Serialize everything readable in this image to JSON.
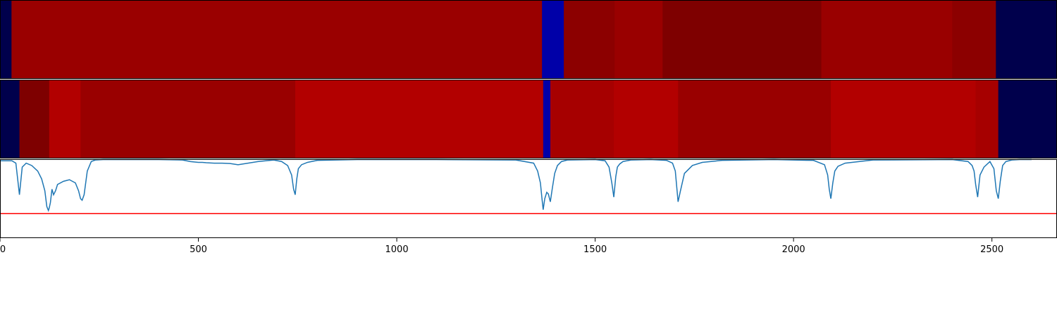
{
  "chart_data": {
    "type": "heatmap",
    "title": "",
    "xlabel": "",
    "ylabel": "",
    "xlim": [
      0,
      2664
    ],
    "x_ticks": [
      0,
      500,
      1000,
      1500,
      2000,
      2500
    ],
    "x_tick_labels": [
      "0",
      "500",
      "1000",
      "1500",
      "2000",
      "2500"
    ],
    "grid": false,
    "colormap": "seismic",
    "rows": [
      {
        "segments": [
          {
            "start": 0,
            "end": 29,
            "color": "#00004c"
          },
          {
            "start": 29,
            "end": 1366,
            "color": "#9a0000"
          },
          {
            "start": 1366,
            "end": 1421,
            "color": "#0000a8"
          },
          {
            "start": 1421,
            "end": 1549,
            "color": "#8c0000"
          },
          {
            "start": 1549,
            "end": 1670,
            "color": "#990000"
          },
          {
            "start": 1670,
            "end": 2070,
            "color": "#7e0000"
          },
          {
            "start": 2070,
            "end": 2400,
            "color": "#990000"
          },
          {
            "start": 2400,
            "end": 2510,
            "color": "#8c0000"
          },
          {
            "start": 2510,
            "end": 2664,
            "color": "#00004c"
          }
        ]
      },
      {
        "segments": [
          {
            "start": 0,
            "end": 49,
            "color": "#00004c"
          },
          {
            "start": 49,
            "end": 124,
            "color": "#7e0000"
          },
          {
            "start": 124,
            "end": 203,
            "color": "#b20000"
          },
          {
            "start": 203,
            "end": 744,
            "color": "#990000"
          },
          {
            "start": 744,
            "end": 1369,
            "color": "#b20000"
          },
          {
            "start": 1369,
            "end": 1387,
            "color": "#0000a8"
          },
          {
            "start": 1387,
            "end": 1547,
            "color": "#a60000"
          },
          {
            "start": 1547,
            "end": 1709,
            "color": "#b20000"
          },
          {
            "start": 1709,
            "end": 2094,
            "color": "#990000"
          },
          {
            "start": 2094,
            "end": 2459,
            "color": "#b20000"
          },
          {
            "start": 2459,
            "end": 2516,
            "color": "#a60000"
          },
          {
            "start": 2516,
            "end": 2664,
            "color": "#00004c"
          }
        ]
      }
    ],
    "line_series": {
      "color": "#1f77b4",
      "ylim": [
        0,
        1
      ],
      "x": [
        0,
        30,
        40,
        49,
        56,
        66,
        80,
        95,
        105,
        113,
        118,
        122,
        124,
        127,
        131,
        135,
        140,
        145,
        160,
        175,
        190,
        198,
        203,
        207,
        212,
        220,
        230,
        240,
        260,
        300,
        400,
        460,
        480,
        500,
        510,
        520,
        540,
        560,
        580,
        600,
        650,
        690,
        710,
        725,
        735,
        740,
        744,
        748,
        752,
        760,
        775,
        800,
        900,
        1100,
        1300,
        1345,
        1355,
        1362,
        1366,
        1369,
        1373,
        1378,
        1382,
        1387,
        1392,
        1398,
        1405,
        1415,
        1430,
        1500,
        1525,
        1535,
        1542,
        1547,
        1552,
        1556,
        1562,
        1570,
        1590,
        1640,
        1680,
        1695,
        1702,
        1709,
        1715,
        1725,
        1745,
        1770,
        1820,
        1950,
        2050,
        2078,
        2086,
        2090,
        2094,
        2099,
        2104,
        2112,
        2130,
        2200,
        2400,
        2440,
        2450,
        2455,
        2459,
        2464,
        2470,
        2480,
        2495,
        2505,
        2511,
        2516,
        2521,
        2527,
        2535,
        2550,
        2570,
        2600
      ],
      "y": [
        0.98,
        0.98,
        0.95,
        0.55,
        0.9,
        0.95,
        0.92,
        0.85,
        0.75,
        0.6,
        0.4,
        0.35,
        0.38,
        0.45,
        0.62,
        0.55,
        0.6,
        0.68,
        0.72,
        0.74,
        0.7,
        0.6,
        0.5,
        0.48,
        0.55,
        0.85,
        0.97,
        0.99,
        0.995,
        0.995,
        0.995,
        0.99,
        0.97,
        0.96,
        0.96,
        0.955,
        0.95,
        0.95,
        0.945,
        0.93,
        0.97,
        0.99,
        0.97,
        0.92,
        0.8,
        0.62,
        0.55,
        0.75,
        0.88,
        0.93,
        0.96,
        0.985,
        0.995,
        0.995,
        0.99,
        0.95,
        0.85,
        0.7,
        0.5,
        0.36,
        0.5,
        0.58,
        0.56,
        0.46,
        0.63,
        0.82,
        0.92,
        0.97,
        0.99,
        0.995,
        0.98,
        0.9,
        0.7,
        0.52,
        0.78,
        0.9,
        0.94,
        0.97,
        0.99,
        0.995,
        0.985,
        0.95,
        0.85,
        0.46,
        0.6,
        0.82,
        0.92,
        0.96,
        0.985,
        0.995,
        0.985,
        0.93,
        0.8,
        0.62,
        0.5,
        0.7,
        0.85,
        0.91,
        0.95,
        0.99,
        0.995,
        0.97,
        0.92,
        0.85,
        0.68,
        0.52,
        0.8,
        0.9,
        0.97,
        0.88,
        0.6,
        0.5,
        0.72,
        0.92,
        0.97,
        0.99,
        0.995,
        0.995
      ]
    },
    "threshold_line": {
      "y": 0.31,
      "color": "#ff0000"
    }
  }
}
